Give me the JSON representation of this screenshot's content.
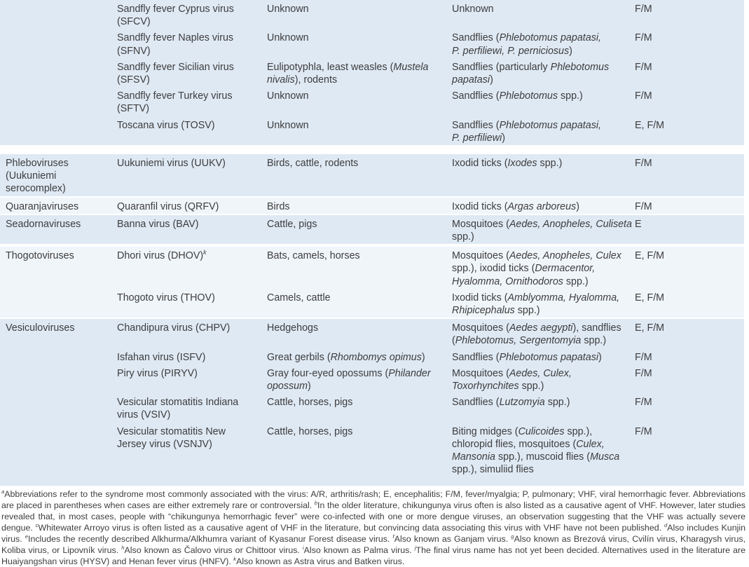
{
  "colors": {
    "row_shade_a": "#dfe9f4",
    "row_shade_b": "#f0f5fa",
    "text": "#3d3d3d",
    "page_bg": "#ffffff"
  },
  "table": {
    "groups": [
      {
        "family": "",
        "shade": "a",
        "rows": [
          {
            "virus": "Sandfly fever Cyprus virus (SFCV)",
            "hosts": "Unknown",
            "vectors": "Unknown",
            "syndrome": "F/M"
          },
          {
            "virus": "Sandfly fever Naples virus (SFNV)",
            "hosts": "Unknown",
            "vectors": "Sandflies (*Phlebotomus papatasi, P. perfiliewi, P. perniciosus*)",
            "syndrome": "F/M"
          },
          {
            "virus": "Sandfly fever Sicilian virus (SFSV)",
            "hosts": "Eulipotyphla, least weasles (*Mustela nivalis*), rodents",
            "vectors": "Sandflies (particularly *Phlebotomus papatasi*)",
            "syndrome": "F/M"
          },
          {
            "virus": "Sandfly fever Turkey virus (SFTV)",
            "hosts": "Unknown",
            "vectors": "Sandflies (*Phlebotomus* spp.)",
            "syndrome": "F/M"
          },
          {
            "virus": "Toscana virus (TOSV)",
            "hosts": "Unknown",
            "vectors": "Sandflies (*Phlebotomus papatasi, P. perfiliewi*)",
            "syndrome": "E, F/M"
          }
        ]
      },
      {
        "family": "Phleboviruses (Uukuniemi serocomplex)",
        "shade": "a",
        "rows": [
          {
            "virus": "Uukuniemi virus (UUKV)",
            "hosts": "Birds, cattle, rodents",
            "vectors": "Ixodid ticks (*Ixodes* spp.)",
            "syndrome": "F/M"
          }
        ]
      },
      {
        "family": "Quaranjaviruses",
        "shade": "b",
        "rows": [
          {
            "virus": "Quaranfil virus (QRFV)",
            "hosts": "Birds",
            "vectors": "Ixodid ticks (*Argas arboreus*)",
            "syndrome": "F/M"
          }
        ]
      },
      {
        "family": "Seadornaviruses",
        "shade": "a",
        "rows": [
          {
            "virus": "Banna virus (BAV)",
            "hosts": "Cattle, pigs",
            "vectors": "Mosquitoes (*Aedes, Anopheles, Culiseta* spp.)",
            "syndrome": "E"
          }
        ]
      },
      {
        "family": "Thogotoviruses",
        "shade": "b",
        "rows": [
          {
            "virus": "Dhori virus (DHOV)^{k}",
            "hosts": "Bats, camels, horses",
            "vectors": "Mosquitoes (*Aedes, Anopheles, Culex* spp.), ixodid ticks (*Dermacentor, Hyalomma, Ornithodoros* spp.)",
            "syndrome": "E, F/M"
          },
          {
            "virus": "Thogoto virus (THOV)",
            "hosts": "Camels, cattle",
            "vectors": "Ixodid ticks (*Amblyomma, Hyalomma, Rhipicephalus* spp.)",
            "syndrome": "E, F/M"
          }
        ]
      },
      {
        "family": "Vesiculoviruses",
        "shade": "a",
        "rows": [
          {
            "virus": "Chandipura virus (CHPV)",
            "hosts": "Hedgehogs",
            "vectors": "Mosquitoes (*Aedes aegypti*), sandflies (*Phlebotomus, Sergentomyia* spp.)",
            "syndrome": "E, F/M"
          },
          {
            "virus": "Isfahan virus (ISFV)",
            "hosts": "Great gerbils (*Rhombomys opimus*)",
            "vectors": "Sandflies (*Phlebotomus papatasi*)",
            "syndrome": "F/M"
          },
          {
            "virus": "Piry virus (PIRYV)",
            "hosts": "Gray four-eyed opossums (*Philander opossum*)",
            "vectors": "Mosquitoes (*Aedes, Culex, Toxorhynchites* spp.)",
            "syndrome": "F/M"
          },
          {
            "virus": "Vesicular stomatitis Indiana virus (VSIV)",
            "hosts": "Cattle, horses, pigs",
            "vectors": "Sandflies (*Lutzomyia* spp.)",
            "syndrome": "F/M"
          },
          {
            "virus": "Vesicular stomatitis New Jersey virus (VSNJV)",
            "hosts": "Cattle, horses, pigs",
            "vectors": "Biting midges (*Culicoides* spp.), chloropid flies, mosquitoes (*Culex, Mansonia* spp.), muscoid flies (*Musca* spp.), simuliid flies",
            "syndrome": "F/M"
          }
        ]
      }
    ]
  },
  "footnote": "^{a}Abbreviations refer to the syndrome most commonly associated with the virus: A/R, arthritis/rash; E, encephalitis; F/M, fever/myalgia; P, pulmonary; VHF, viral hemorrhagic fever. Abbreviations are placed in parentheses when cases are either extremely rare or controversial. ^{b}In the older literature, chikungunya virus often is also listed as a causative agent of VHF. However, later studies revealed that, in most cases, people with “chikungunya hemorrhagic fever” were co-infected with one or more dengue viruses, an observation suggesting that the VHF was actually severe dengue. ^{c}Whitewater Arroyo virus is often listed as a causative agent of VHF in the literature, but convincing data associating this virus with VHF have not been published. ^{d}Also includes Kunjin virus. ^{e}Includes the recently described Alkhurma/Alkhumra variant of Kyasanur Forest disease virus. ^{f}Also known as Ganjam virus. ^{g}Also known as Brezová virus, Cvilín virus, Kharagysh virus, Koliba virus, or Lipovník virus. ^{h}Also known as Čalovo virus or Chittoor virus. ^{i}Also known as Palma virus. ^{j}The final virus name has not yet been decided. Alternatives used in the literature are Huaiyangshan virus (HYSV) and Henan fever virus (HNFV). ^{k}Also known as Astra virus and Batken virus."
}
